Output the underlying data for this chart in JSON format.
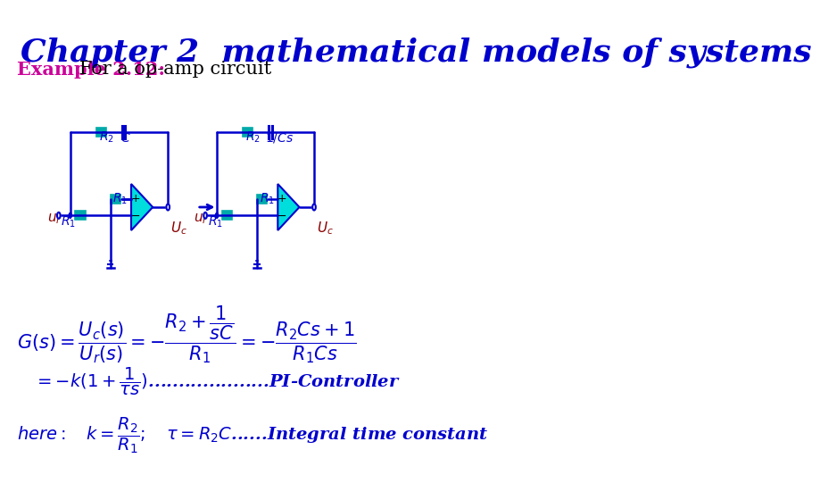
{
  "title": "Chapter 2  mathematical models of systems",
  "title_color": "#0000CD",
  "title_fontsize": 26,
  "example_label": "Example 2.12:",
  "example_label_color": "#CC0099",
  "example_text": "   For a op-amp circuit",
  "example_fontsize": 15,
  "bg_color": "#FFFFFF",
  "formula1": "$G(s) = \\dfrac{U_c(s)}{U_r(s)} = -\\dfrac{R_2 + \\dfrac{1}{sC}}{R_1} = -\\dfrac{R_2Cs+1}{R_1Cs}$",
  "formula2": "$= -k(1+\\dfrac{1}{\\tau s})$....................PI-Controller",
  "formula3": "$here:  \\quad k = \\dfrac{R_2}{R_1}; \\quad \\tau = R_2C$......Integral time constant",
  "circuit_color": "#0000CD",
  "resistor_color": "#00AAAA",
  "opamp_fill": "#00DDDD",
  "wire_color": "#0000CD",
  "label_color_dark": "#8B0000"
}
